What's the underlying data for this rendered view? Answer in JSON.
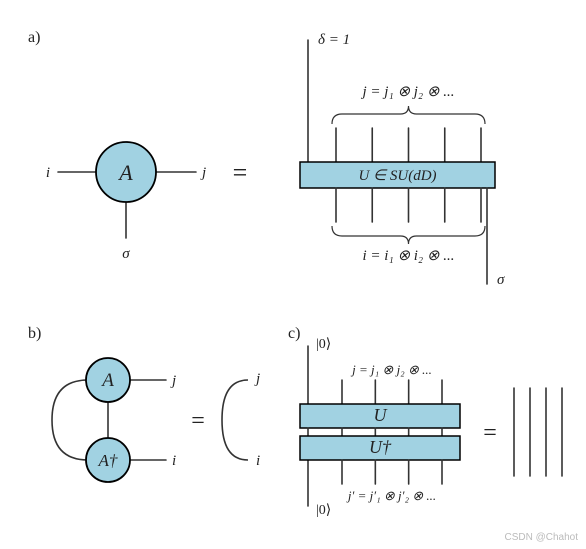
{
  "panel_a": {
    "label": "a)",
    "tensor_label": "A",
    "leg_i": "i",
    "leg_j": "j",
    "leg_sigma": "σ",
    "delta": "δ = 1",
    "top_j": "j = j₁ ⊗ j₂ ⊗ ...",
    "bot_i": "i = i₁ ⊗ i₂ ⊗ ...",
    "unitary": "U ∈ SU(dD)",
    "sigma_right": "σ",
    "node_fill": "#a1d2e2",
    "node_stroke": "#000000",
    "box_fill": "#a1d2e2",
    "box_stroke": "#000000",
    "line_color": "#333333",
    "line_width": 1.6,
    "fontsize_label": 16,
    "fontsize_text": 15,
    "fontsize_big": 22
  },
  "panel_b": {
    "label": "b)",
    "tensor_top": "A",
    "tensor_bot": "A†",
    "leg_j": "j",
    "leg_i": "i",
    "arc_j": "j",
    "arc_i": "i",
    "node_fill": "#a1d2e2",
    "node_stroke": "#000000",
    "line_color": "#333333",
    "line_width": 1.6,
    "fontsize_label": 16,
    "fontsize_text": 15,
    "fontsize_big": 19
  },
  "panel_c": {
    "label": "c)",
    "ket_top": "|0⟩",
    "ket_bot": "|0⟩",
    "top_j": "j = j₁ ⊗ j₂ ⊗ ...",
    "bot_j": "j′ = j′₁ ⊗ j′₂ ⊗ ...",
    "U": "U",
    "Udag": "U†",
    "box_fill": "#a1d2e2",
    "box_stroke": "#000000",
    "line_color": "#333333",
    "line_width": 1.6,
    "fontsize_label": 16,
    "fontsize_text": 14,
    "fontsize_big": 18,
    "identity_lines": 4
  },
  "watermark": "CSDN @Chahot",
  "bg": "#ffffff"
}
